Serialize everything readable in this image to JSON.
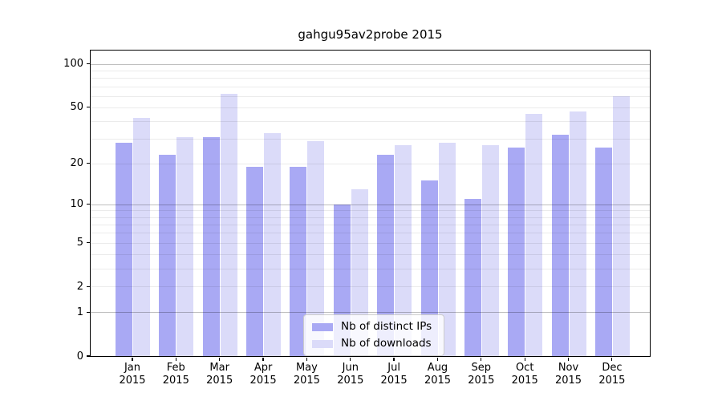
{
  "title": "gahgu95av2probe 2015",
  "colors": {
    "ips_bar": "#a9a9f4",
    "downloads_bar": "#dbdbf9",
    "grid_decade": "rgba(0,0,0,0.25)",
    "grid_minor": "rgba(0,0,0,0.08)",
    "frame": "#000000",
    "background": "#ffffff",
    "legend_border": "#cccccc",
    "text": "#000000"
  },
  "chart_data": {
    "type": "bar",
    "title": "gahgu95av2probe 2015",
    "categories": [
      "Jan",
      "Feb",
      "Mar",
      "Apr",
      "May",
      "Jun",
      "Jul",
      "Aug",
      "Sep",
      "Oct",
      "Nov",
      "Dec"
    ],
    "year": "2015",
    "series": [
      {
        "name": "Nb of distinct IPs",
        "values": [
          28,
          23,
          31,
          19,
          19,
          10,
          23,
          15,
          11,
          26,
          32,
          26
        ]
      },
      {
        "name": "Nb of downloads",
        "values": [
          42,
          31,
          62,
          33,
          29,
          13,
          27,
          28,
          27,
          45,
          47,
          60
        ]
      }
    ],
    "xlabel": "",
    "ylabel": "",
    "y_scale": "log10(value+1), zero at baseline",
    "y_tick_labels": [
      "0",
      "1",
      "2",
      "5",
      "10",
      "20",
      "50",
      "100"
    ],
    "y_ticks": [
      0,
      1,
      2,
      5,
      10,
      20,
      50,
      100
    ],
    "y_minor_gridlines": [
      3,
      4,
      6,
      7,
      8,
      9,
      30,
      40,
      60,
      70,
      80,
      90
    ],
    "ylim": [
      0,
      124
    ],
    "grid": "on",
    "legend_position": "bottom-center-inside"
  },
  "legend": {
    "items": [
      {
        "label": "Nb of distinct IPs"
      },
      {
        "label": "Nb of downloads"
      }
    ]
  }
}
